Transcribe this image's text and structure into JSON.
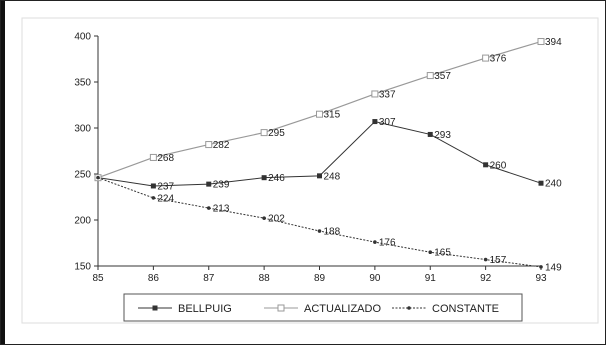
{
  "chart_data": {
    "type": "line",
    "title": "",
    "xlabel": "",
    "ylabel": "",
    "x": [
      "85",
      "86",
      "87",
      "88",
      "89",
      "90",
      "91",
      "92",
      "93"
    ],
    "ylim": [
      150,
      400
    ],
    "yticks": [
      150,
      200,
      250,
      300,
      350,
      400
    ],
    "grid": false,
    "legend_position": "bottom",
    "series": [
      {
        "name": "BELLPUIG",
        "color": "#333333",
        "marker": "filled-square",
        "values": [
          246,
          237,
          239,
          246,
          248,
          307,
          293,
          260,
          240
        ],
        "labels": [
          "",
          "237",
          "239",
          "246",
          "248",
          "307",
          "293",
          "260",
          "240"
        ]
      },
      {
        "name": "ACTUALIZADO",
        "color": "#999999",
        "marker": "open-square",
        "values": [
          246,
          268,
          282,
          295,
          315,
          337,
          357,
          376,
          394
        ],
        "labels": [
          "",
          "268",
          "282",
          "295",
          "315",
          "337",
          "357",
          "376",
          "394"
        ]
      },
      {
        "name": "CONSTANTE",
        "color": "#333333",
        "marker": "dot",
        "values": [
          246,
          224,
          213,
          202,
          188,
          176,
          165,
          157,
          149
        ],
        "labels": [
          "",
          "224",
          "213",
          "202",
          "188",
          "176",
          "165",
          "157",
          "149"
        ]
      }
    ]
  }
}
